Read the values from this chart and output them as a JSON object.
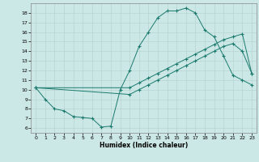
{
  "line1_x": [
    0,
    1,
    2,
    3,
    4,
    5,
    6,
    7,
    8,
    9,
    10,
    11,
    12,
    13,
    14,
    15,
    16,
    17,
    18,
    19,
    20,
    21,
    22,
    23
  ],
  "line1_y": [
    10.2,
    9.0,
    8.0,
    7.8,
    7.2,
    7.1,
    7.0,
    6.1,
    6.2,
    10.0,
    12.0,
    14.5,
    16.0,
    17.5,
    18.2,
    18.2,
    18.5,
    18.0,
    16.2,
    15.5,
    13.5,
    11.5,
    11.0,
    10.5
  ],
  "line2_x": [
    0,
    10,
    11,
    12,
    13,
    14,
    15,
    16,
    17,
    18,
    19,
    20,
    21,
    22,
    23
  ],
  "line2_y": [
    10.2,
    10.2,
    10.7,
    11.2,
    11.7,
    12.2,
    12.7,
    13.2,
    13.7,
    14.2,
    14.7,
    15.2,
    15.5,
    15.8,
    11.7
  ],
  "line3_x": [
    0,
    10,
    11,
    12,
    13,
    14,
    15,
    16,
    17,
    18,
    19,
    20,
    21,
    22,
    23
  ],
  "line3_y": [
    10.2,
    9.5,
    10.0,
    10.5,
    11.0,
    11.5,
    12.0,
    12.5,
    13.0,
    13.5,
    14.0,
    14.5,
    14.8,
    14.0,
    11.7
  ],
  "color": "#1a7a6e",
  "bg_color": "#cce8e6",
  "grid_color": "#b8d4d2",
  "xlabel": "Humidex (Indice chaleur)",
  "yticks": [
    6,
    7,
    8,
    9,
    10,
    11,
    12,
    13,
    14,
    15,
    16,
    17,
    18
  ],
  "xticks": [
    0,
    1,
    2,
    3,
    4,
    5,
    6,
    7,
    8,
    9,
    10,
    11,
    12,
    13,
    14,
    15,
    16,
    17,
    18,
    19,
    20,
    21,
    22,
    23
  ],
  "ylim": [
    5.5,
    19.0
  ],
  "xlim": [
    -0.5,
    23.5
  ]
}
